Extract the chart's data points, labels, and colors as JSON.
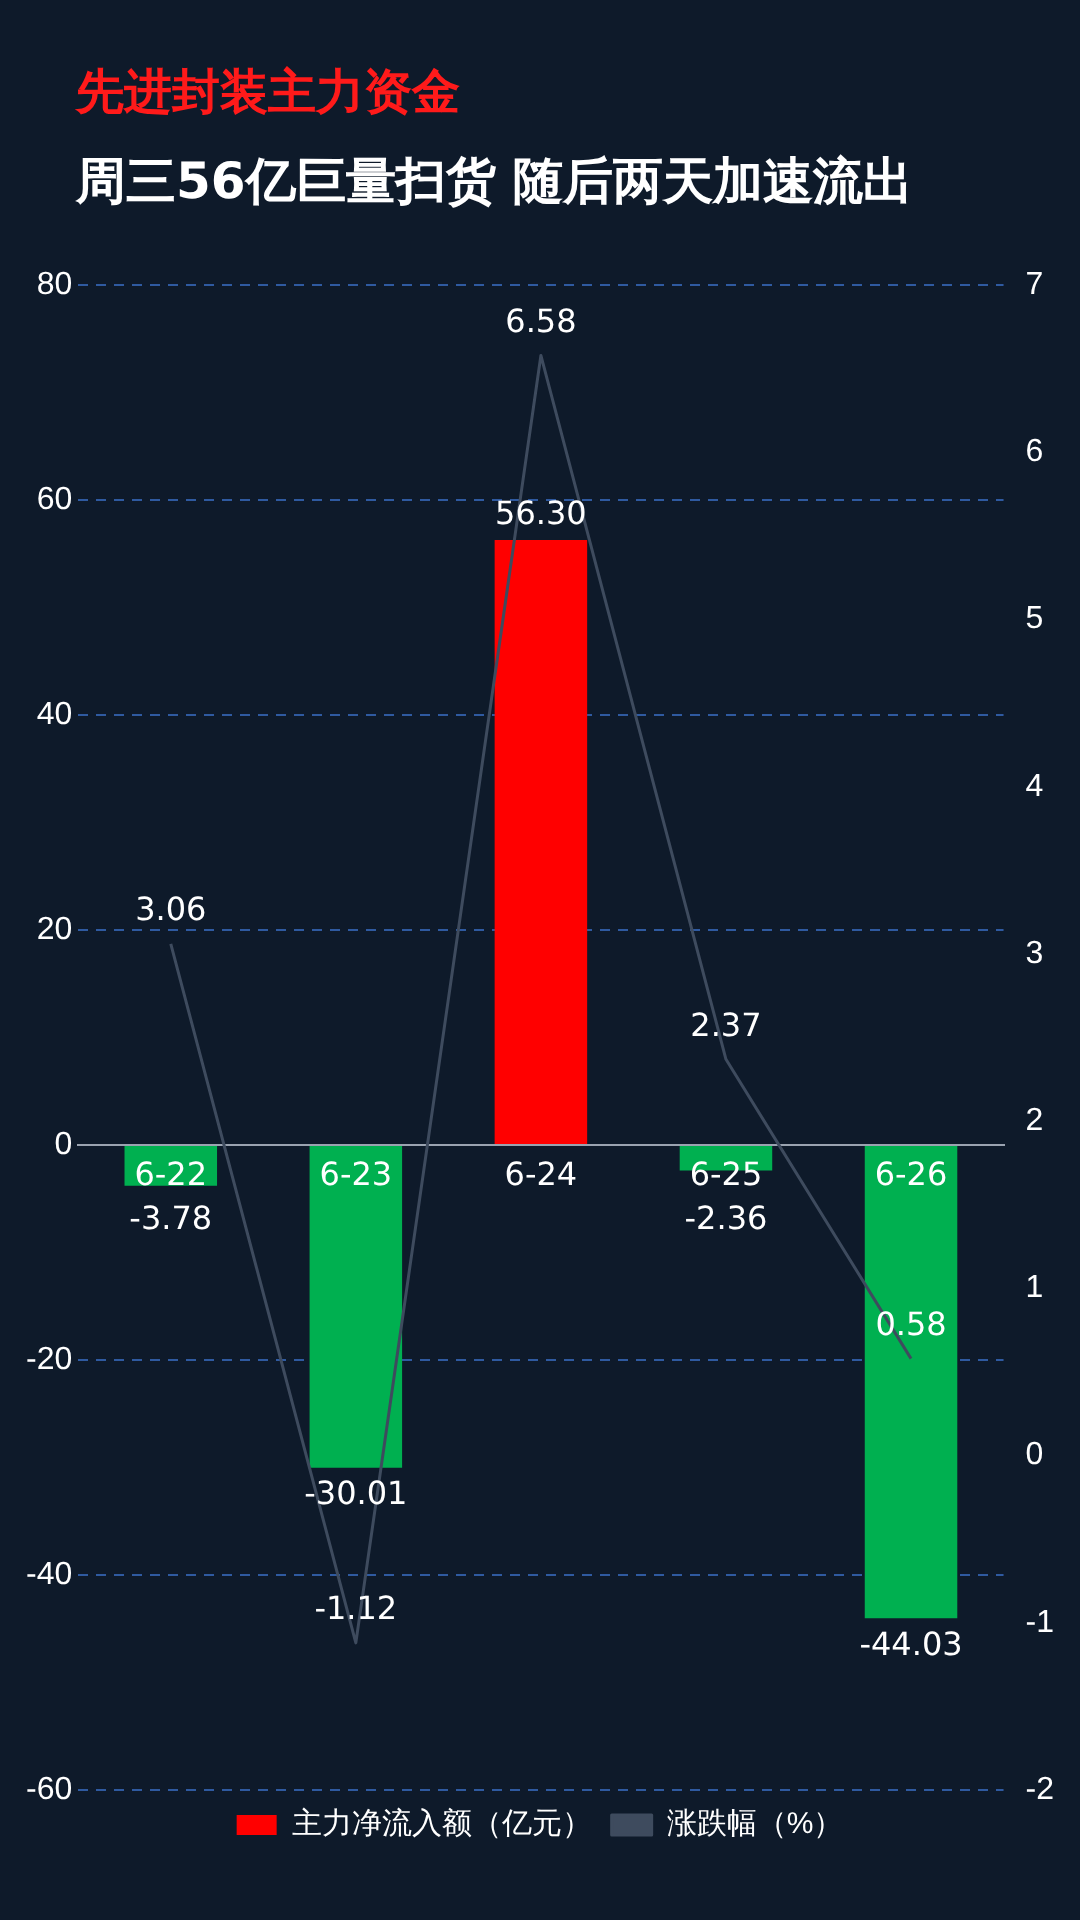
{
  "chart_data": {
    "type": "bar",
    "title": "先进封装主力资金",
    "subtitle": "周三56亿巨量扫货 随后两天加速流出",
    "categories": [
      "6-22",
      "6-23",
      "6-24",
      "6-25",
      "6-26"
    ],
    "series": [
      {
        "name": "主力净流入额（亿元）",
        "color": "#ff0000",
        "colors": [
          "#00b050",
          "#00b050",
          "#ff0000",
          "#00b050",
          "#00b050"
        ],
        "values": [
          -3.78,
          -30.01,
          56.3,
          -2.36,
          -44.03
        ],
        "value_labels": [
          "-3.78",
          "-30.01",
          "56.30",
          "-2.36",
          "-44.03"
        ]
      },
      {
        "name": "涨跌幅（%）",
        "type": "line",
        "axis": "y2",
        "color": "#3e4b5e",
        "values": [
          3.06,
          -1.12,
          6.58,
          2.37,
          0.58
        ],
        "value_labels": [
          "3.06",
          "-1.12",
          "6.58",
          "2.37",
          "0.58"
        ]
      }
    ],
    "ylim": [
      -60,
      80
    ],
    "yticks": [
      -60,
      -40,
      -20,
      0,
      20,
      40,
      60,
      80
    ],
    "y2lim": [
      -2,
      7
    ],
    "y2ticks": [
      -2,
      -1,
      0,
      1,
      2,
      3,
      4,
      5,
      6,
      7
    ],
    "grid": "y",
    "legend": "bottom",
    "marker": "none",
    "line_style": "solid"
  }
}
